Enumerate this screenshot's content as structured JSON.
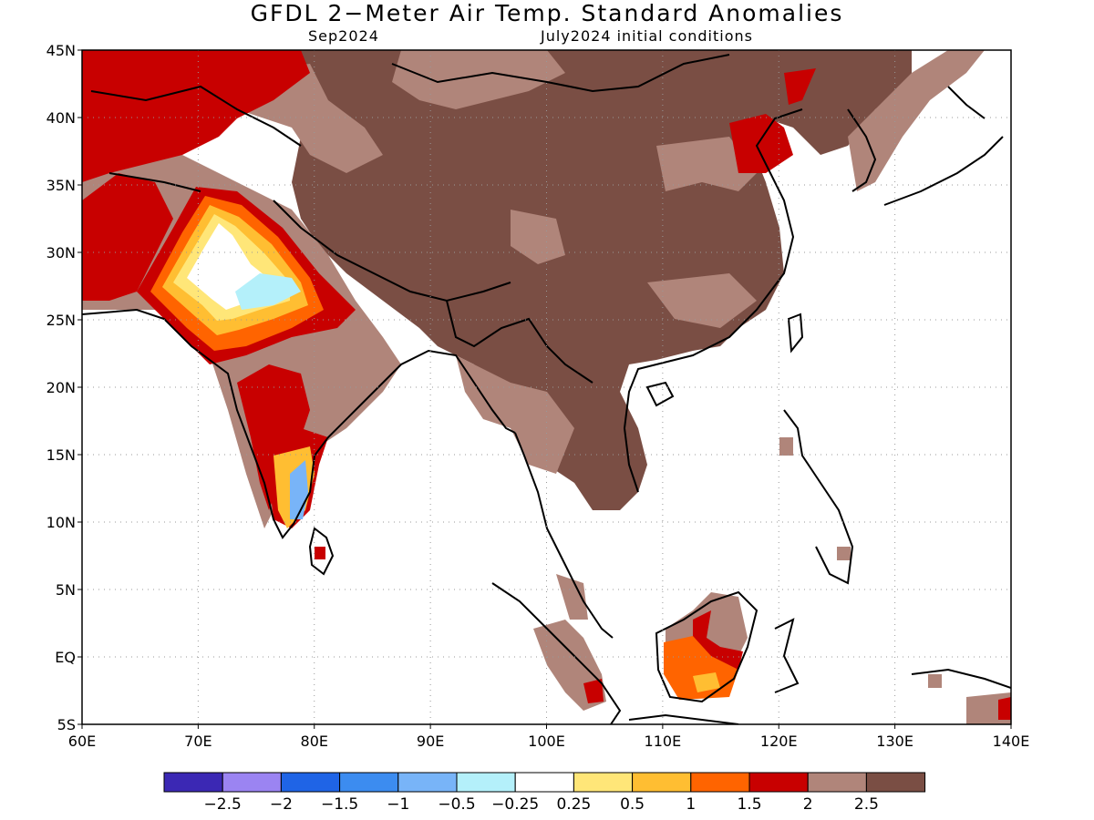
{
  "title": "GFDL 2−Meter Air Temp. Standard Anomalies",
  "subtitle_left": "Sep2024",
  "subtitle_right": "July2024 initial conditions",
  "map": {
    "lon_range": [
      60,
      140
    ],
    "lat_range": [
      -5,
      45
    ],
    "grid": true,
    "lat_labels": [
      "45N",
      "40N",
      "35N",
      "30N",
      "25N",
      "20N",
      "15N",
      "10N",
      "5N",
      "EQ",
      "5S"
    ],
    "lon_labels": [
      "60E",
      "70E",
      "80E",
      "90E",
      "100E",
      "110E",
      "120E",
      "130E",
      "140E"
    ]
  },
  "colorbar": {
    "colors": [
      "#3b28b4",
      "#9b84f2",
      "#1f64e6",
      "#3c8cf0",
      "#78b4f8",
      "#b4f0fa",
      "#ffffff",
      "#ffe678",
      "#ffbe32",
      "#ff6400",
      "#c80000",
      "#b0857a",
      "#7a4e44"
    ],
    "labels": [
      "−2.5",
      "−2",
      "−1.5",
      "−1",
      "−0.5",
      "−0.25",
      "0.25",
      "0.5",
      "1",
      "1.5",
      "2",
      "2.5"
    ]
  }
}
